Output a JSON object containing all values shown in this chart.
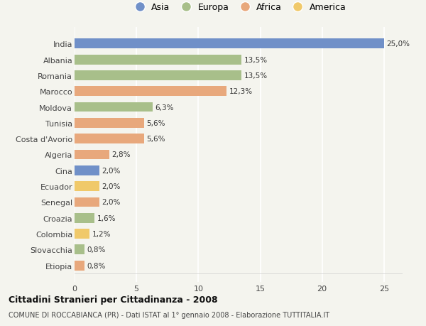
{
  "countries": [
    "India",
    "Albania",
    "Romania",
    "Marocco",
    "Moldova",
    "Tunisia",
    "Costa d'Avorio",
    "Algeria",
    "Cina",
    "Ecuador",
    "Senegal",
    "Croazia",
    "Colombia",
    "Slovacchia",
    "Etiopia"
  ],
  "values": [
    25.0,
    13.5,
    13.5,
    12.3,
    6.3,
    5.6,
    5.6,
    2.8,
    2.0,
    2.0,
    2.0,
    1.6,
    1.2,
    0.8,
    0.8
  ],
  "labels": [
    "25,0%",
    "13,5%",
    "13,5%",
    "12,3%",
    "6,3%",
    "5,6%",
    "5,6%",
    "2,8%",
    "2,0%",
    "2,0%",
    "2,0%",
    "1,6%",
    "1,2%",
    "0,8%",
    "0,8%"
  ],
  "colors": [
    "#7090c8",
    "#a8bf8a",
    "#a8bf8a",
    "#e8a87c",
    "#a8bf8a",
    "#e8a87c",
    "#e8a87c",
    "#e8a87c",
    "#7090c8",
    "#f0c96a",
    "#e8a87c",
    "#a8bf8a",
    "#f0c96a",
    "#a8bf8a",
    "#e8a87c"
  ],
  "legend_labels": [
    "Asia",
    "Europa",
    "Africa",
    "America"
  ],
  "legend_colors": [
    "#7090c8",
    "#a8bf8a",
    "#e8a87c",
    "#f0c96a"
  ],
  "title": "Cittadini Stranieri per Cittadinanza - 2008",
  "subtitle": "COMUNE DI ROCCABIANCA (PR) - Dati ISTAT al 1° gennaio 2008 - Elaborazione TUTTITALIA.IT",
  "xlim": [
    0,
    26.5
  ],
  "xticks": [
    0,
    5,
    10,
    15,
    20,
    25
  ],
  "background_color": "#f4f4ee",
  "grid_color": "#ffffff",
  "bar_height": 0.62
}
